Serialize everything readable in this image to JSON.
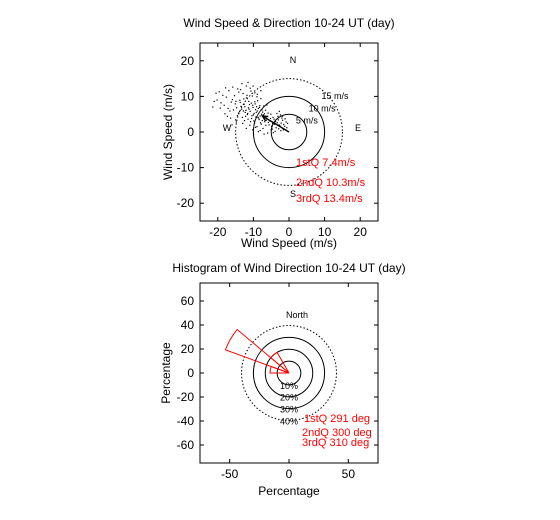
{
  "chart_data": [
    {
      "type": "scatter",
      "title": "Wind Speed & Direction 10-24 UT (day)",
      "xlabel": "Wind Speed (m/s)",
      "ylabel": "Wind Speed (m/s)",
      "xlim": [
        -25,
        25
      ],
      "ylim": [
        -25,
        25
      ],
      "xticks": [
        -20,
        -10,
        0,
        10,
        20
      ],
      "yticks": [
        -20,
        -10,
        0,
        10,
        20
      ],
      "compass": {
        "N": "N",
        "S": "S",
        "E": "E",
        "W": "W"
      },
      "rings": [
        {
          "radius": 5,
          "label": "5 m/s",
          "style": "solid"
        },
        {
          "radius": 10,
          "label": "10 m/s",
          "style": "solid"
        },
        {
          "radius": 15,
          "label": "15 m/s",
          "style": "dotted"
        }
      ],
      "mean_vector": {
        "x": -7.5,
        "y": 4.5
      },
      "points": [
        [
          -9.8,
          5.2
        ],
        [
          -11.2,
          6.4
        ],
        [
          -8.5,
          3.9
        ],
        [
          -12.6,
          7.8
        ],
        [
          -10.4,
          4.6
        ],
        [
          -7.6,
          6.2
        ],
        [
          -13.8,
          8.9
        ],
        [
          -9.1,
          7.1
        ],
        [
          -6.4,
          3.3
        ],
        [
          -14.7,
          6.8
        ],
        [
          -11.9,
          9.6
        ],
        [
          -8.9,
          5.9
        ],
        [
          -10.8,
          2.9
        ],
        [
          -16.2,
          8.4
        ],
        [
          -7.2,
          4.8
        ],
        [
          -12.3,
          5.5
        ],
        [
          -9.6,
          8.5
        ],
        [
          -5.8,
          2.7
        ],
        [
          -13.1,
          4.1
        ],
        [
          -10.1,
          6.9
        ],
        [
          -15.3,
          10.2
        ],
        [
          -8.2,
          7.4
        ],
        [
          -11.5,
          3.6
        ],
        [
          -6.9,
          5.1
        ],
        [
          -12.9,
          10.8
        ],
        [
          -9.3,
          4.2
        ],
        [
          -17.1,
          6.6
        ],
        [
          -7.8,
          2.2
        ],
        [
          -10.6,
          8.1
        ],
        [
          -14.2,
          5.3
        ],
        [
          -8.6,
          6.6
        ],
        [
          -11.1,
          7.7
        ],
        [
          -6.1,
          4.4
        ],
        [
          -13.5,
          7.2
        ],
        [
          -9.9,
          3.1
        ],
        [
          -15.9,
          9.1
        ],
        [
          -7.4,
          5.6
        ],
        [
          -12.1,
          6.1
        ],
        [
          -10.3,
          10.1
        ],
        [
          -8.1,
          4.5
        ],
        [
          -18.2,
          7.5
        ],
        [
          -9.4,
          6.3
        ],
        [
          -11.7,
          4.9
        ],
        [
          -5.2,
          3.8
        ],
        [
          -14.1,
          11.2
        ],
        [
          -8.8,
          8.8
        ],
        [
          -12.5,
          3.2
        ],
        [
          -10.9,
          5.8
        ],
        [
          -7.1,
          7.3
        ],
        [
          -16.6,
          5.9
        ],
        [
          -9.7,
          2.5
        ],
        [
          -13.3,
          6.4
        ],
        [
          -6.6,
          6.1
        ],
        [
          -11.3,
          8.6
        ],
        [
          -8.4,
          3.5
        ],
        [
          -15.1,
          7.9
        ],
        [
          -10.2,
          7.5
        ],
        [
          -4.6,
          2.4
        ],
        [
          -12.7,
          9.3
        ],
        [
          -9.2,
          5.5
        ],
        [
          -7.9,
          9.4
        ],
        [
          -14.5,
          4.6
        ],
        [
          -11.6,
          5.2
        ],
        [
          -6.3,
          3.9
        ],
        [
          -13.7,
          8.3
        ],
        [
          -8.7,
          4.1
        ],
        [
          -10.7,
          11.5
        ],
        [
          -17.6,
          9.8
        ],
        [
          -9.5,
          7.9
        ],
        [
          -12.2,
          4.4
        ],
        [
          -5.9,
          5.3
        ],
        [
          -11.4,
          6.8
        ],
        [
          -7.5,
          3.2
        ],
        [
          -15.6,
          6.2
        ],
        [
          -10.5,
          3.8
        ],
        [
          -8.3,
          6.9
        ],
        [
          -13.9,
          5.7
        ],
        [
          -6.8,
          2.9
        ],
        [
          -12.4,
          7.1
        ],
        [
          -9.0,
          9.9
        ],
        [
          -19.1,
          8.2
        ],
        [
          -7.7,
          5.0
        ],
        [
          -11.8,
          10.3
        ],
        [
          -10.0,
          4.8
        ],
        [
          -14.9,
          8.6
        ],
        [
          -8.0,
          2.6
        ],
        [
          -12.8,
          5.9
        ],
        [
          -6.2,
          7.6
        ],
        [
          -3.8,
          2.9
        ],
        [
          -2.6,
          1.8
        ],
        [
          -4.2,
          3.6
        ],
        [
          -3.1,
          4.4
        ],
        [
          -2.2,
          2.5
        ],
        [
          -4.9,
          1.6
        ],
        [
          -1.8,
          3.3
        ],
        [
          -3.4,
          5.2
        ],
        [
          -2.9,
          0.9
        ],
        [
          -4.5,
          4.1
        ],
        [
          -1.5,
          2.1
        ],
        [
          -5.4,
          3.1
        ],
        [
          -2.4,
          4.8
        ],
        [
          -3.6,
          1.2
        ],
        [
          -1.2,
          1.6
        ],
        [
          -4.1,
          2.2
        ],
        [
          -0.8,
          2.8
        ],
        [
          -2.0,
          3.9
        ],
        [
          -3.3,
          2.6
        ],
        [
          -5.1,
          5.0
        ],
        [
          -1.6,
          0.6
        ],
        [
          -2.7,
          5.8
        ],
        [
          -4.7,
          0.8
        ],
        [
          -1.9,
          4.4
        ],
        [
          -0.6,
          1.2
        ],
        [
          -3.0,
          3.4
        ],
        [
          -2.3,
          0.4
        ],
        [
          -5.6,
          2.0
        ],
        [
          -1.1,
          3.7
        ],
        [
          -3.9,
          0.2
        ],
        [
          -0.4,
          2.4
        ],
        [
          -2.8,
          2.0
        ],
        [
          -6.5,
          1.9
        ],
        [
          -7.3,
          1.0
        ],
        [
          -5.0,
          0.7
        ],
        [
          -8.1,
          0.4
        ],
        [
          -6.0,
          -0.3
        ],
        [
          -9.0,
          1.5
        ],
        [
          -4.4,
          -0.2
        ],
        [
          -7.0,
          -0.6
        ],
        [
          -16.9,
          11.6
        ],
        [
          -18.6,
          10.3
        ],
        [
          -14.4,
          12.1
        ],
        [
          -20.2,
          9.0
        ],
        [
          -17.8,
          12.4
        ],
        [
          -13.6,
          11.9
        ],
        [
          -19.6,
          11.3
        ],
        [
          -15.8,
          12.6
        ],
        [
          -21.0,
          8.6
        ],
        [
          -16.4,
          3.9
        ],
        [
          -18.0,
          5.1
        ],
        [
          -19.3,
          6.7
        ],
        [
          -20.5,
          10.9
        ],
        [
          -15.0,
          3.4
        ],
        [
          -17.3,
          4.4
        ],
        [
          -21.4,
          7.0
        ],
        [
          -12.0,
          12.9
        ],
        [
          -10.9,
          12.3
        ],
        [
          -9.6,
          11.0
        ],
        [
          -13.2,
          13.6
        ],
        [
          -8.9,
          10.6
        ],
        [
          -11.5,
          13.9
        ],
        [
          -7.9,
          11.6
        ],
        [
          -10.1,
          12.9
        ],
        [
          -11.0,
          1.9
        ],
        [
          -13.0,
          2.4
        ],
        [
          -9.4,
          1.3
        ],
        [
          -14.8,
          2.8
        ],
        [
          -12.0,
          1.0
        ],
        [
          -16.0,
          2.0
        ],
        [
          -10.2,
          0.6
        ],
        [
          -8.6,
          0.1
        ]
      ],
      "quartiles": [
        "1stQ 7.4m/s",
        "2ndQ 10.3m/s",
        "3rdQ 13.4m/s"
      ]
    },
    {
      "type": "polar-histogram",
      "title": "Histogram of Wind Direction 10-24 UT (day)",
      "xlabel": "Percentage",
      "ylabel": "Percentage",
      "xlim": [
        -75,
        75
      ],
      "ylim": [
        -75,
        75
      ],
      "xticks": [
        -50,
        0,
        50
      ],
      "yticks": [
        -60,
        -40,
        -20,
        0,
        20,
        40,
        60
      ],
      "north_label": "North",
      "rings": [
        {
          "radius": 10,
          "label": "10%",
          "style": "solid"
        },
        {
          "radius": 20,
          "label": "20%",
          "style": "solid"
        },
        {
          "radius": 30,
          "label": "30%",
          "style": "solid"
        },
        {
          "radius": 40,
          "label": "40%",
          "style": "dotted"
        }
      ],
      "sectors": [
        {
          "from_deg": 270,
          "to_deg": 290,
          "percent": 16
        },
        {
          "from_deg": 290,
          "to_deg": 310,
          "percent": 57
        },
        {
          "from_deg": 310,
          "to_deg": 330,
          "percent": 20
        }
      ],
      "quartiles": [
        "1stQ 291 deg",
        "2ndQ 300 deg",
        "3rdQ 310 deg"
      ]
    }
  ]
}
